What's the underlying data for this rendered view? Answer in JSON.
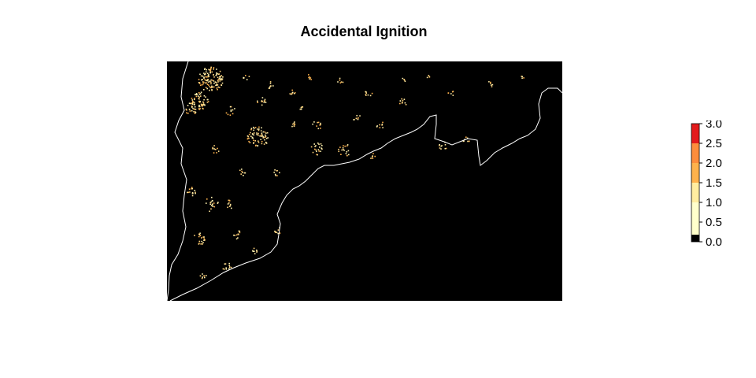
{
  "title": "Accidental Ignition",
  "legend": {
    "breaks": [
      0.0,
      0.5,
      1.0,
      1.5,
      2.0,
      2.5,
      3.0
    ],
    "tick_labels": [
      "0.0",
      "0.5",
      "1.0",
      "1.5",
      "2.0",
      "2.5",
      "3.0"
    ],
    "colors": [
      "#000000",
      "#FFFFCC",
      "#FFEDA0",
      "#FEB24C",
      "#FD8D3C",
      "#E31A1C",
      "#BD0026"
    ]
  },
  "map": {
    "background_color": "#000000",
    "coastline_color": "#ffffff",
    "dot_colors": [
      "#FFF2B0",
      "#FED27A",
      "#FEB24C",
      "#FFE8A0"
    ]
  }
}
